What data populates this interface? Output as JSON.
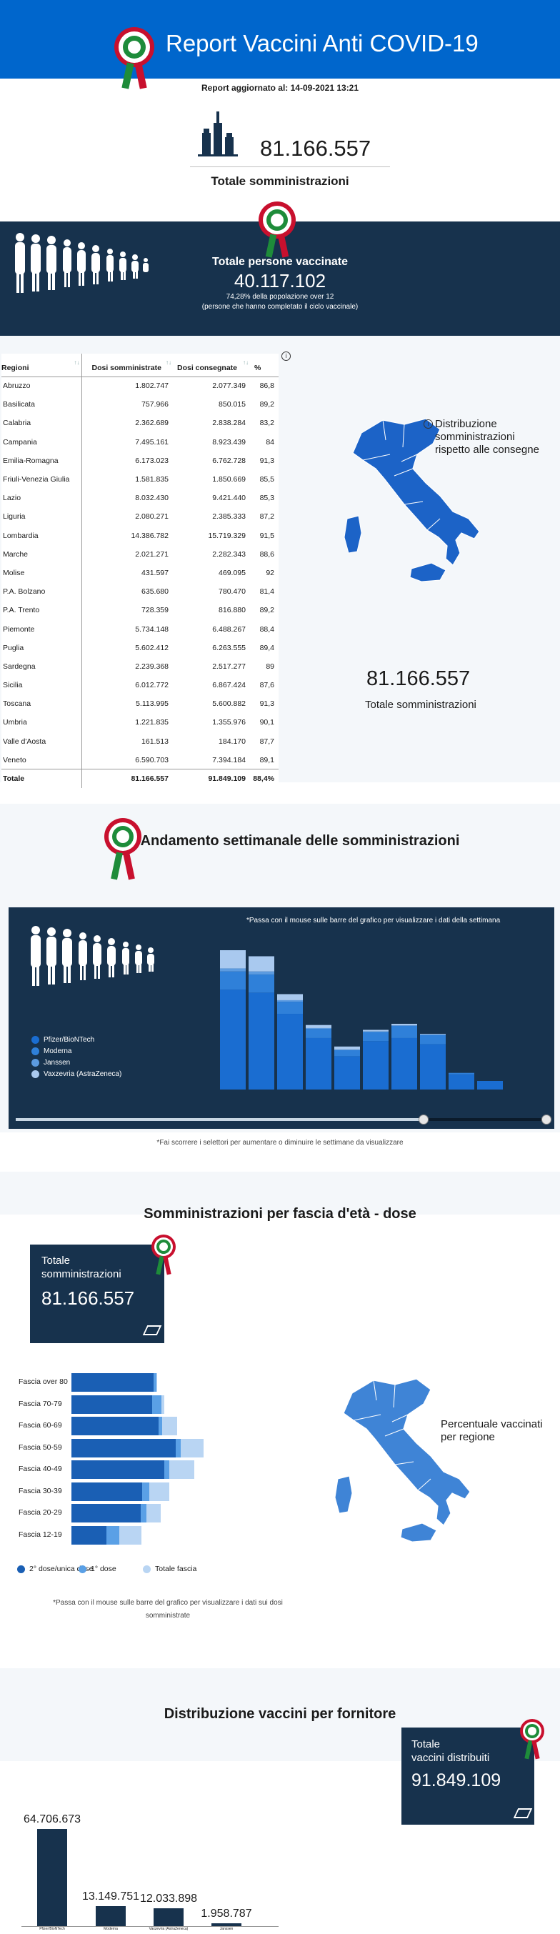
{
  "header": {
    "title": "Report Vaccini Anti COVID-19",
    "updated": "Report aggiornato al: 14-09-2021 13:21"
  },
  "summary": {
    "total_administrations": "81.166.557",
    "total_label": "Totale somministrazioni"
  },
  "vaccinated": {
    "title": "Totale persone vaccinate",
    "number": "40.117.102",
    "percent_line": "74,28% della popolazione over 12",
    "note": "(persone che hanno completato il ciclo vaccinale)"
  },
  "regions_table": {
    "headers": [
      "Regioni",
      "Dosi somministrate",
      "Dosi consegnate",
      "%"
    ],
    "rows": [
      [
        "Abruzzo",
        "1.802.747",
        "2.077.349",
        "86,8"
      ],
      [
        "Basilicata",
        "757.966",
        "850.015",
        "89,2"
      ],
      [
        "Calabria",
        "2.362.689",
        "2.838.284",
        "83,2"
      ],
      [
        "Campania",
        "7.495.161",
        "8.923.439",
        "84"
      ],
      [
        "Emilia-Romagna",
        "6.173.023",
        "6.762.728",
        "91,3"
      ],
      [
        "Friuli-Venezia Giulia",
        "1.581.835",
        "1.850.669",
        "85,5"
      ],
      [
        "Lazio",
        "8.032.430",
        "9.421.440",
        "85,3"
      ],
      [
        "Liguria",
        "2.080.271",
        "2.385.333",
        "87,2"
      ],
      [
        "Lombardia",
        "14.386.782",
        "15.719.329",
        "91,5"
      ],
      [
        "Marche",
        "2.021.271",
        "2.282.343",
        "88,6"
      ],
      [
        "Molise",
        "431.597",
        "469.095",
        "92"
      ],
      [
        "P.A. Bolzano",
        "635.680",
        "780.470",
        "81,4"
      ],
      [
        "P.A. Trento",
        "728.359",
        "816.880",
        "89,2"
      ],
      [
        "Piemonte",
        "5.734.148",
        "6.488.267",
        "88,4"
      ],
      [
        "Puglia",
        "5.602.412",
        "6.263.555",
        "89,4"
      ],
      [
        "Sardegna",
        "2.239.368",
        "2.517.277",
        "89"
      ],
      [
        "Sicilia",
        "6.012.772",
        "6.867.424",
        "87,6"
      ],
      [
        "Toscana",
        "5.113.995",
        "5.600.882",
        "91,3"
      ],
      [
        "Umbria",
        "1.221.835",
        "1.355.976",
        "90,1"
      ],
      [
        "Valle d'Aosta",
        "161.513",
        "184.170",
        "87,7"
      ],
      [
        "Veneto",
        "6.590.703",
        "7.394.184",
        "89,1"
      ]
    ],
    "total": [
      "Totale",
      "81.166.557",
      "91.849.109",
      "88,4%"
    ]
  },
  "map_section": {
    "caption_line1": "Distribuzione",
    "caption_line2": "somministrazioni",
    "caption_line3": "rispetto alle consegne",
    "total_number": "81.166.557",
    "total_label": "Totale somministrazioni",
    "info_glyph": "i"
  },
  "weekly": {
    "title": "Andamento settimanale delle somministrazioni",
    "note": "*Passa con il mouse sulle barre del grafico per visualizzare i dati della settimana",
    "footer": "*Fai scorrere i selettori per aumentare o diminuire le settimane da visualizzare",
    "legend": [
      {
        "label": "Pfizer/BioNTech",
        "color": "#1a6dd1"
      },
      {
        "label": "Moderna",
        "color": "#2f80d9"
      },
      {
        "label": "Janssen",
        "color": "#5c9be0"
      },
      {
        "label": "Vaxzevria (AstraZeneca)",
        "color": "#a9c9ef"
      }
    ]
  },
  "chart_data": {
    "type": "bar",
    "stacked": true,
    "categories": [
      "",
      "",
      "",
      "",
      "",
      "",
      "",
      "",
      "",
      ""
    ],
    "series": [
      {
        "name": "Pfizer/BioNTech",
        "values": [
          3.3,
          3.2,
          2.5,
          1.7,
          1.1,
          1.6,
          1.7,
          1.5,
          0.5,
          0
        ]
      },
      {
        "name": "Moderna",
        "values": [
          0.6,
          0.6,
          0.4,
          0.3,
          0.2,
          0.3,
          0.4,
          0.3,
          0.05,
          0
        ]
      },
      {
        "name": "Janssen",
        "values": [
          0.1,
          0.1,
          0.05,
          0.03,
          0.02,
          0.02,
          0.02,
          0.02,
          0.0,
          0
        ]
      },
      {
        "name": "Vaxzevria (AstraZeneca)",
        "values": [
          0.6,
          0.5,
          0.2,
          0.1,
          0.1,
          0.05,
          0.05,
          0.02,
          0.0,
          0
        ]
      }
    ]
  },
  "age": {
    "title": "Somministrazioni per fascia d'età - dose",
    "box_label_line1": "Totale",
    "box_label_line2": "somministrazioni",
    "box_number": "81.166.557",
    "map_caption_line1": "Percentuale vaccinati",
    "map_caption_line2": "per regione",
    "footer_line1": "*Passa con il mouse sulle barre del grafico per visualizzare i dati sui dosi",
    "footer_line2": "somministrate",
    "legend": [
      {
        "label": "2° dose/unica dose",
        "color": "#1a5fb4"
      },
      {
        "label": "1° dose",
        "color": "#5aa0e6"
      },
      {
        "label": "Totale fascia",
        "color": "#b9d5f3"
      }
    ],
    "groups": [
      {
        "label": "Fascia over 80",
        "second": 0.82,
        "first": 0.03,
        "total": 0.86
      },
      {
        "label": "Fascia 70-79",
        "second": 0.81,
        "first": 0.09,
        "total": 0.93
      },
      {
        "label": "Fascia 60-69",
        "second": 0.87,
        "first": 0.04,
        "total": 1.06
      },
      {
        "label": "Fascia 50-59",
        "second": 1.04,
        "first": 0.05,
        "total": 1.32
      },
      {
        "label": "Fascia 40-49",
        "second": 0.93,
        "first": 0.05,
        "total": 1.23
      },
      {
        "label": "Fascia 30-39",
        "second": 0.71,
        "first": 0.07,
        "total": 0.98
      },
      {
        "label": "Fascia 20-29",
        "second": 0.69,
        "first": 0.06,
        "total": 0.89
      },
      {
        "label": "Fascia 12-19",
        "second": 0.35,
        "first": 0.13,
        "total": 0.7
      }
    ]
  },
  "supplier": {
    "title": "Distribuzione vaccini per fornitore",
    "box_label_line1": "Totale",
    "box_label_line2": "vaccini distribuiti",
    "box_number": "91.849.109",
    "bars": [
      {
        "value": "64.706.673",
        "amount": 64706673,
        "label": "Pfizer/BioNTech"
      },
      {
        "value": "13.149.751",
        "amount": 13149751,
        "label": "Moderna"
      },
      {
        "value": "12.033.898",
        "amount": 12033898,
        "label": "Vaxzevria (AstraZeneca)"
      },
      {
        "value": "1.958.787",
        "amount": 1958787,
        "label": "Janssen"
      }
    ]
  },
  "colors": {
    "primary": "#0066cc",
    "dark": "#17324d",
    "italy_map": "#3f84d6",
    "section_bg": "#f4f7fa"
  }
}
